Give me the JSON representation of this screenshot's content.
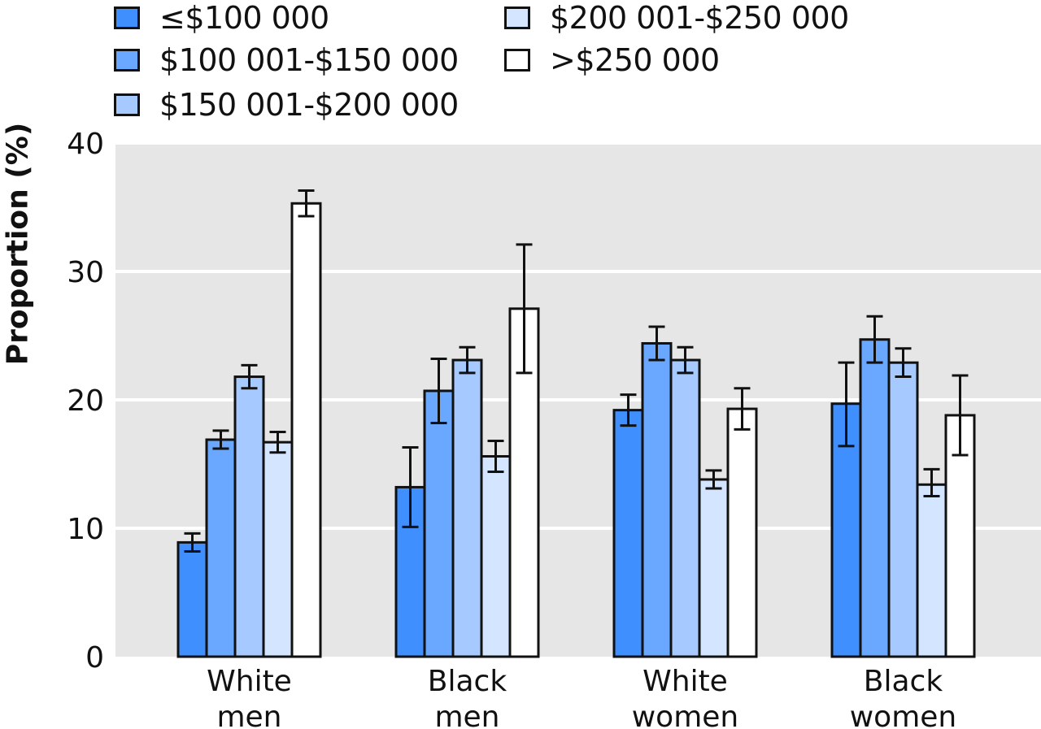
{
  "chart_data": {
    "type": "bar",
    "ylabel": "Proportion (%)",
    "xlabel": "",
    "ylim": [
      0,
      40
    ],
    "yticks": [
      0,
      10,
      20,
      30,
      40
    ],
    "grid": true,
    "legend_position": "top",
    "categories": [
      [
        "White",
        "men"
      ],
      [
        "Black",
        "men"
      ],
      [
        "White",
        "women"
      ],
      [
        "Black",
        "women"
      ]
    ],
    "series": [
      {
        "name": "≤$100 000",
        "color": "#3f8fff",
        "values": [
          8.9,
          13.2,
          19.2,
          19.7
        ],
        "ci_low": [
          8.2,
          10.1,
          18.0,
          16.4
        ],
        "ci_high": [
          9.6,
          16.3,
          20.4,
          22.9
        ]
      },
      {
        "name": "$100 001-$150 000",
        "color": "#6aa8ff",
        "values": [
          16.9,
          20.7,
          24.4,
          24.7
        ],
        "ci_low": [
          16.2,
          18.2,
          23.1,
          22.9
        ],
        "ci_high": [
          17.6,
          23.2,
          25.7,
          26.5
        ]
      },
      {
        "name": "$150 001-$200 000",
        "color": "#a6c9ff",
        "values": [
          21.8,
          23.1,
          23.1,
          22.9
        ],
        "ci_low": [
          20.9,
          22.1,
          22.1,
          21.8
        ],
        "ci_high": [
          22.7,
          24.1,
          24.1,
          24.0
        ]
      },
      {
        "name": "$200 001-$250 000",
        "color": "#d4e5ff",
        "values": [
          16.7,
          15.6,
          13.8,
          13.4
        ],
        "ci_low": [
          15.9,
          14.4,
          13.1,
          12.5
        ],
        "ci_high": [
          17.5,
          16.8,
          14.5,
          14.6
        ]
      },
      {
        "name": ">$250 000",
        "color": "#ffffff",
        "values": [
          35.3,
          27.1,
          19.3,
          18.8
        ],
        "ci_low": [
          34.3,
          22.1,
          17.7,
          15.7
        ],
        "ci_high": [
          36.3,
          32.1,
          20.9,
          21.9
        ]
      }
    ]
  }
}
